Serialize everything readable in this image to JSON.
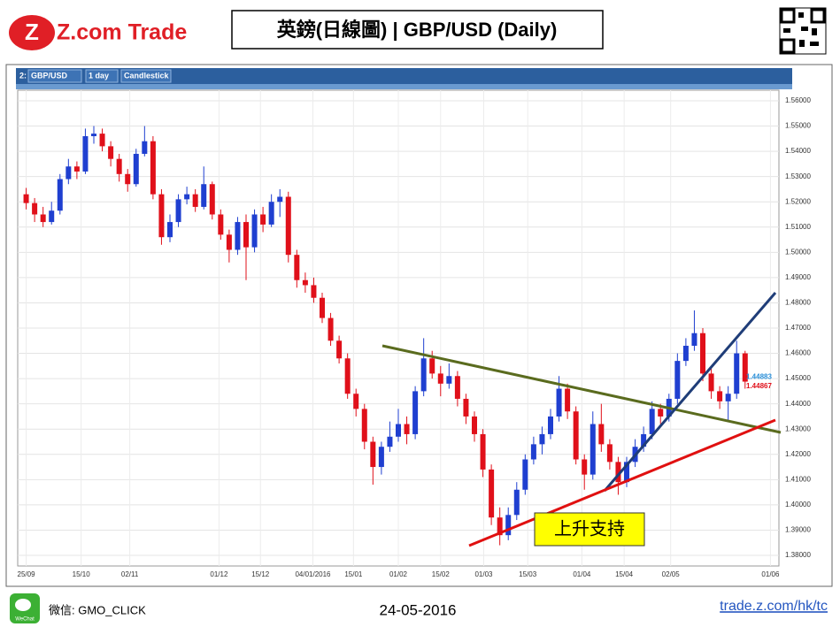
{
  "header": {
    "logo": "Z.com Trade",
    "title": "英鎊(日線圖) | GBP/USD  (Daily)"
  },
  "chart_data": {
    "type": "candlestick",
    "toolbar": [
      "2:",
      "GBP/USD",
      "1 day",
      "Candlestick"
    ],
    "up_color": "#1f3fd0",
    "down_color": "#e0101a",
    "grid": true,
    "ylim": [
      1.3758,
      1.5642
    ],
    "yticks": [
      {
        "value": 1.38,
        "label": "1.38000"
      },
      {
        "value": 1.39,
        "label": "1.39000"
      },
      {
        "value": 1.4,
        "label": "1.40000"
      },
      {
        "value": 1.41,
        "label": "1.41000"
      },
      {
        "value": 1.42,
        "label": "1.42000"
      },
      {
        "value": 1.43,
        "label": "1.43000"
      },
      {
        "value": 1.44,
        "label": "1.44000"
      },
      {
        "value": 1.45,
        "label": "1.45000"
      },
      {
        "value": 1.46,
        "label": "1.46000"
      },
      {
        "value": 1.47,
        "label": "1.47000"
      },
      {
        "value": 1.48,
        "label": "1.48000"
      },
      {
        "value": 1.49,
        "label": "1.49000"
      },
      {
        "value": 1.5,
        "label": "1.50000"
      },
      {
        "value": 1.51,
        "label": "1.51000"
      },
      {
        "value": 1.52,
        "label": "1.52000"
      },
      {
        "value": 1.53,
        "label": "1.53000"
      },
      {
        "value": 1.54,
        "label": "1.54000"
      },
      {
        "value": 1.55,
        "label": "1.55000"
      },
      {
        "value": 1.56,
        "label": "1.56000"
      }
    ],
    "xlim": [
      -1,
      89
    ],
    "xticks": [
      {
        "value": 0,
        "label": "25/09"
      },
      {
        "value": 6.5,
        "label": "15/10"
      },
      {
        "value": 12.25,
        "label": "02/11"
      },
      {
        "value": 22.8,
        "label": "01/12"
      },
      {
        "value": 27.7,
        "label": "15/12"
      },
      {
        "value": 33.9,
        "label": "04/01/2016"
      },
      {
        "value": 38.7,
        "label": "15/01"
      },
      {
        "value": 44,
        "label": "01/02"
      },
      {
        "value": 49,
        "label": "15/02"
      },
      {
        "value": 54.1,
        "label": "01/03"
      },
      {
        "value": 59.3,
        "label": "15/03"
      },
      {
        "value": 65.7,
        "label": "01/04"
      },
      {
        "value": 70.7,
        "label": "15/04"
      },
      {
        "value": 76.2,
        "label": "02/05"
      },
      {
        "value": 88,
        "label": "01/06"
      }
    ],
    "ohlc": [
      [
        1.523,
        1.5255,
        1.517,
        1.5195
      ],
      [
        1.5195,
        1.5215,
        1.512,
        1.515
      ],
      [
        1.515,
        1.518,
        1.51,
        1.512
      ],
      [
        1.512,
        1.52,
        1.511,
        1.5165
      ],
      [
        1.5165,
        1.531,
        1.515,
        1.529
      ],
      [
        1.529,
        1.537,
        1.527,
        1.534
      ],
      [
        1.534,
        1.536,
        1.529,
        1.532
      ],
      [
        1.532,
        1.549,
        1.531,
        1.546
      ],
      [
        1.546,
        1.55,
        1.543,
        1.547
      ],
      [
        1.547,
        1.549,
        1.54,
        1.542
      ],
      [
        1.542,
        1.544,
        1.534,
        1.537
      ],
      [
        1.537,
        1.539,
        1.528,
        1.531
      ],
      [
        1.531,
        1.533,
        1.524,
        1.527
      ],
      [
        1.527,
        1.541,
        1.526,
        1.539
      ],
      [
        1.539,
        1.55,
        1.538,
        1.544
      ],
      [
        1.544,
        1.546,
        1.521,
        1.523
      ],
      [
        1.523,
        1.525,
        1.503,
        1.506
      ],
      [
        1.506,
        1.515,
        1.504,
        1.512
      ],
      [
        1.512,
        1.523,
        1.51,
        1.521
      ],
      [
        1.521,
        1.526,
        1.519,
        1.523
      ],
      [
        1.523,
        1.525,
        1.516,
        1.518
      ],
      [
        1.518,
        1.534,
        1.517,
        1.527
      ],
      [
        1.527,
        1.528,
        1.513,
        1.515
      ],
      [
        1.515,
        1.517,
        1.505,
        1.507
      ],
      [
        1.507,
        1.509,
        1.496,
        1.501
      ],
      [
        1.501,
        1.514,
        1.499,
        1.512
      ],
      [
        1.512,
        1.515,
        1.489,
        1.502
      ],
      [
        1.502,
        1.517,
        1.5,
        1.515
      ],
      [
        1.515,
        1.518,
        1.508,
        1.511
      ],
      [
        1.511,
        1.523,
        1.51,
        1.52
      ],
      [
        1.52,
        1.525,
        1.514,
        1.522
      ],
      [
        1.522,
        1.524,
        1.496,
        1.499
      ],
      [
        1.499,
        1.501,
        1.486,
        1.489
      ],
      [
        1.489,
        1.492,
        1.484,
        1.487
      ],
      [
        1.487,
        1.49,
        1.48,
        1.482
      ],
      [
        1.482,
        1.484,
        1.472,
        1.474
      ],
      [
        1.474,
        1.476,
        1.463,
        1.465
      ],
      [
        1.465,
        1.467,
        1.456,
        1.458
      ],
      [
        1.458,
        1.46,
        1.442,
        1.444
      ],
      [
        1.444,
        1.446,
        1.435,
        1.438
      ],
      [
        1.438,
        1.44,
        1.422,
        1.425
      ],
      [
        1.425,
        1.427,
        1.408,
        1.415
      ],
      [
        1.415,
        1.425,
        1.412,
        1.423
      ],
      [
        1.423,
        1.433,
        1.421,
        1.427
      ],
      [
        1.427,
        1.438,
        1.425,
        1.432
      ],
      [
        1.432,
        1.435,
        1.424,
        1.428
      ],
      [
        1.428,
        1.447,
        1.426,
        1.445
      ],
      [
        1.445,
        1.466,
        1.443,
        1.458
      ],
      [
        1.458,
        1.461,
        1.45,
        1.452
      ],
      [
        1.452,
        1.455,
        1.443,
        1.448
      ],
      [
        1.448,
        1.456,
        1.446,
        1.451
      ],
      [
        1.451,
        1.453,
        1.439,
        1.442
      ],
      [
        1.442,
        1.444,
        1.432,
        1.435
      ],
      [
        1.435,
        1.437,
        1.425,
        1.428
      ],
      [
        1.428,
        1.43,
        1.411,
        1.414
      ],
      [
        1.414,
        1.416,
        1.392,
        1.395
      ],
      [
        1.395,
        1.399,
        1.384,
        1.388
      ],
      [
        1.388,
        1.399,
        1.386,
        1.396
      ],
      [
        1.396,
        1.409,
        1.394,
        1.406
      ],
      [
        1.406,
        1.42,
        1.404,
        1.418
      ],
      [
        1.418,
        1.427,
        1.416,
        1.424
      ],
      [
        1.424,
        1.431,
        1.42,
        1.428
      ],
      [
        1.428,
        1.438,
        1.426,
        1.435
      ],
      [
        1.435,
        1.451,
        1.433,
        1.446
      ],
      [
        1.446,
        1.448,
        1.434,
        1.437
      ],
      [
        1.437,
        1.439,
        1.416,
        1.418
      ],
      [
        1.418,
        1.42,
        1.406,
        1.412
      ],
      [
        1.412,
        1.437,
        1.41,
        1.432
      ],
      [
        1.432,
        1.44,
        1.421,
        1.424
      ],
      [
        1.424,
        1.426,
        1.414,
        1.417
      ],
      [
        1.417,
        1.419,
        1.404,
        1.409
      ],
      [
        1.409,
        1.419,
        1.407,
        1.417
      ],
      [
        1.417,
        1.426,
        1.415,
        1.423
      ],
      [
        1.423,
        1.431,
        1.421,
        1.428
      ],
      [
        1.428,
        1.441,
        1.426,
        1.438
      ],
      [
        1.438,
        1.44,
        1.432,
        1.435
      ],
      [
        1.435,
        1.444,
        1.433,
        1.442
      ],
      [
        1.442,
        1.46,
        1.44,
        1.457
      ],
      [
        1.457,
        1.466,
        1.455,
        1.463
      ],
      [
        1.463,
        1.477,
        1.461,
        1.468
      ],
      [
        1.468,
        1.47,
        1.449,
        1.452
      ],
      [
        1.452,
        1.454,
        1.442,
        1.445
      ],
      [
        1.445,
        1.447,
        1.438,
        1.441
      ],
      [
        1.441,
        1.447,
        1.433,
        1.444
      ],
      [
        1.444,
        1.465,
        1.442,
        1.46
      ],
      [
        1.46,
        1.461,
        1.446,
        1.4488
      ]
    ],
    "last_prices": [
      {
        "value": 1.44883,
        "label": "1.44883",
        "color": "#2a8fd8"
      },
      {
        "value": 1.44867,
        "label": "1.44867",
        "color": "#e0101a"
      }
    ],
    "annotation": "上升支持"
  },
  "footer": {
    "wechat_icon": "WeChat",
    "wechat": "微信: GMO_CLICK",
    "date": "24-05-2016",
    "url": "trade.z.com/hk/tc"
  }
}
